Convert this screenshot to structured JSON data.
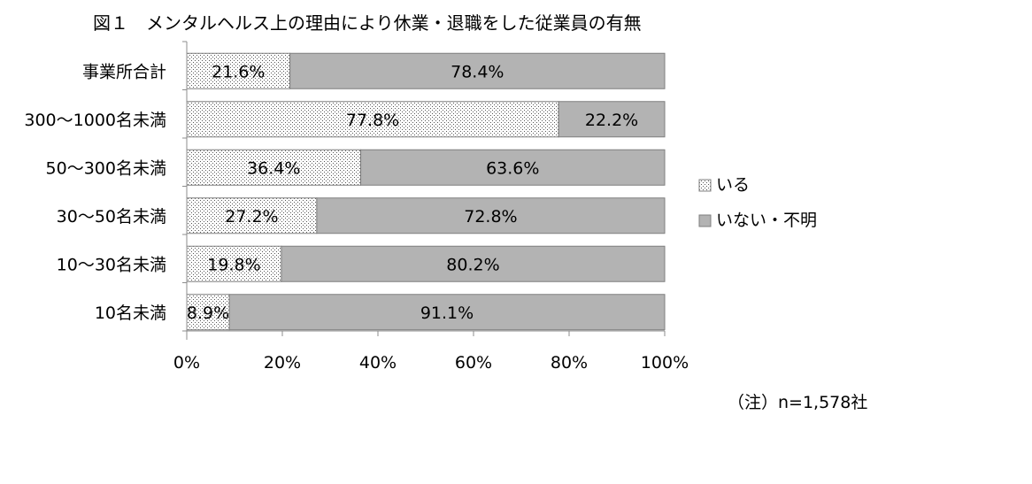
{
  "chart_data": {
    "type": "bar",
    "orientation": "horizontal",
    "stacked": "100%",
    "title": "図１　メンタルヘルス上の理由により休業・退職をした従業員の有無",
    "categories": [
      "事業所合計",
      "300～1000名未満",
      "50～300名未満",
      "30～50名未満",
      "10～30名未満",
      "10名未満"
    ],
    "series": [
      {
        "name": "いる",
        "values": [
          21.6,
          77.8,
          36.4,
          27.2,
          19.8,
          8.9
        ],
        "labels": [
          "21.6%",
          "77.8%",
          "36.4%",
          "27.2%",
          "19.8%",
          "8.9%"
        ],
        "fill": "dotted",
        "color": "#ffffff"
      },
      {
        "name": "いない・不明",
        "values": [
          78.4,
          22.2,
          63.6,
          72.8,
          80.2,
          91.1
        ],
        "labels": [
          "78.4%",
          "22.2%",
          "63.6%",
          "72.8%",
          "80.2%",
          "91.1%"
        ],
        "fill": "solid",
        "color": "#b3b3b3"
      }
    ],
    "xlim": [
      0,
      100
    ],
    "x_ticks": [
      "0%",
      "20%",
      "40%",
      "60%",
      "80%",
      "100%"
    ],
    "grid": false,
    "legend_position": "right",
    "note": "（注）n=1,578社"
  }
}
